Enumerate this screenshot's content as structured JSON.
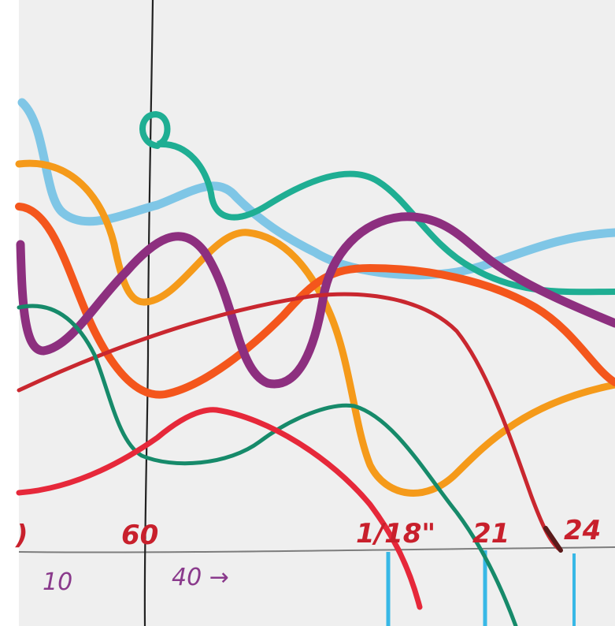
{
  "photo": {
    "subject": "hand-drawn marker curves on paper",
    "paper_color": "#efefef"
  },
  "marker_colors": {
    "light_blue": "#7fc6e6",
    "teal": "#1fae93",
    "orange": "#f59a1a",
    "red_orange": "#f4561c",
    "purple": "#8d2f7f",
    "dark_red": "#c9272f",
    "dark_green": "#168a6a",
    "red": "#e6283a",
    "cyan_tick": "#38b8e6",
    "black_line": "#222222"
  },
  "labels": {
    "zero_fragment": ")",
    "sixty": "60",
    "eighteen": "1/18\"",
    "twentyone": "21",
    "twentyfour": "24",
    "ten": "10",
    "forty": "40 →"
  }
}
